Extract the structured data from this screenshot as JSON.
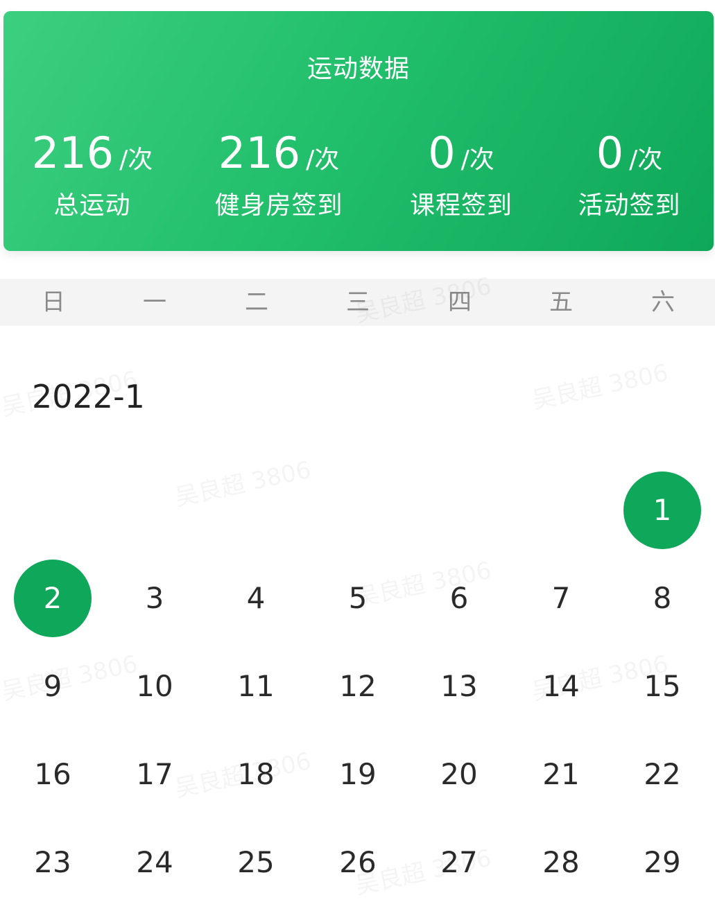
{
  "stats": {
    "title": "运动数据",
    "items": [
      {
        "value": "216",
        "unit": "/次",
        "label": "总运动"
      },
      {
        "value": "216",
        "unit": "/次",
        "label": "健身房签到"
      },
      {
        "value": "0",
        "unit": "/次",
        "label": "课程签到"
      },
      {
        "value": "0",
        "unit": "/次",
        "label": "活动签到"
      }
    ]
  },
  "calendar": {
    "weekdays": [
      "日",
      "一",
      "二",
      "三",
      "四",
      "五",
      "六"
    ],
    "month": "2022-1",
    "days": [
      "1",
      "2",
      "3",
      "4",
      "5",
      "6",
      "7",
      "8",
      "9",
      "10",
      "11",
      "12",
      "13",
      "14",
      "15",
      "16",
      "17",
      "18",
      "19",
      "20",
      "21",
      "22",
      "23",
      "24",
      "25",
      "26",
      "27",
      "28",
      "29"
    ],
    "selected_days": [
      "1",
      "2"
    ]
  },
  "watermark": "吴良超 3806",
  "colors": {
    "accent": "#0fa85a",
    "card_gradient_start": "#3ccf80",
    "card_gradient_end": "#0fa85a",
    "weekday_bar_bg": "#f4f4f4",
    "weekday_text": "#8a8a8a",
    "day_text": "#2a2a2a"
  }
}
